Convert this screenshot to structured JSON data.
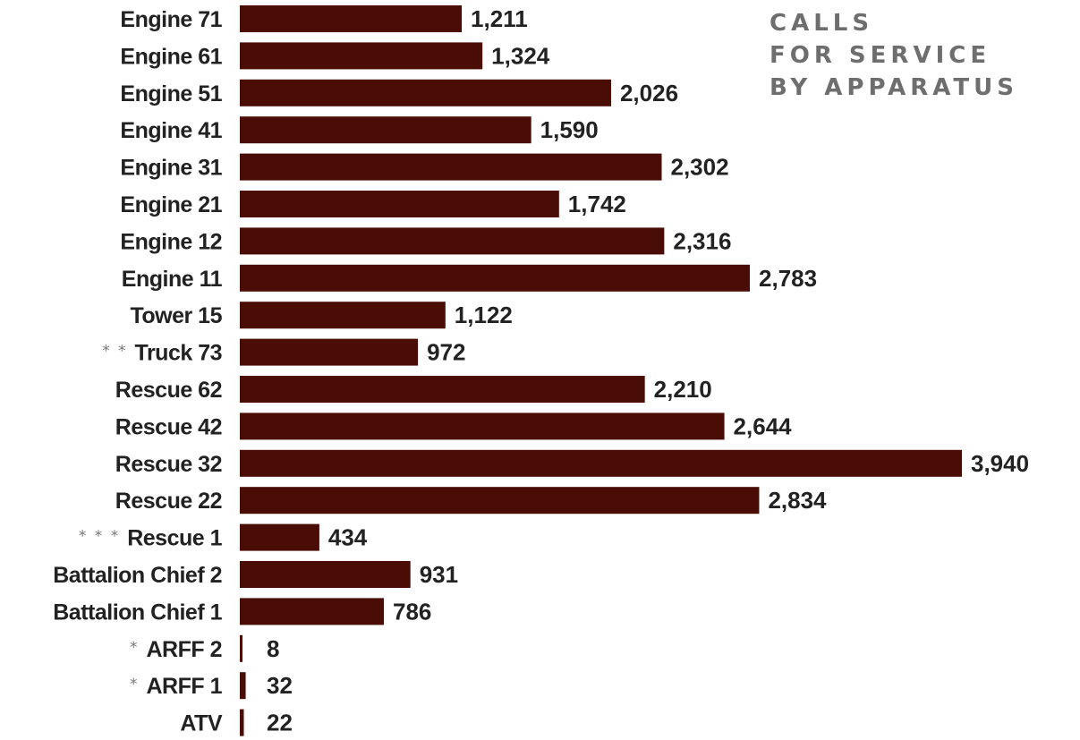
{
  "chart_data": {
    "type": "bar",
    "orientation": "horizontal",
    "title_lines": [
      "CALLS",
      "FOR SERVICE",
      "BY APPARATUS"
    ],
    "categories": [
      "Engine 71",
      "Engine 61",
      "Engine 51",
      "Engine 41",
      "Engine 31",
      "Engine 21",
      "Engine 12",
      "Engine 11",
      "Tower 15",
      "Truck 73",
      "Rescue 62",
      "Rescue 42",
      "Rescue 32",
      "Rescue 22",
      "Rescue 1",
      "Battalion Chief 2",
      "Battalion Chief 1",
      "ARFF 2",
      "ARFF 1",
      "ATV"
    ],
    "markers": [
      "",
      "",
      "",
      "",
      "",
      "",
      "",
      "",
      "",
      "* *",
      "",
      "",
      "",
      "",
      "* * *",
      "",
      "",
      "*",
      "*",
      ""
    ],
    "values": [
      1211,
      1324,
      2026,
      1590,
      2302,
      1742,
      2316,
      2783,
      1122,
      972,
      2210,
      2644,
      3940,
      2834,
      434,
      931,
      786,
      8,
      32,
      22
    ],
    "value_labels": [
      "1,211",
      "1,324",
      "2,026",
      "1,590",
      "2,302",
      "1,742",
      "2,316",
      "2,783",
      "1,122",
      "972",
      "2,210",
      "2,644",
      "3,940",
      "2,834",
      "434",
      "931",
      "786",
      "8",
      "32",
      "22"
    ],
    "bar_color": "#4a0d06",
    "grid": false,
    "legend": "none"
  }
}
